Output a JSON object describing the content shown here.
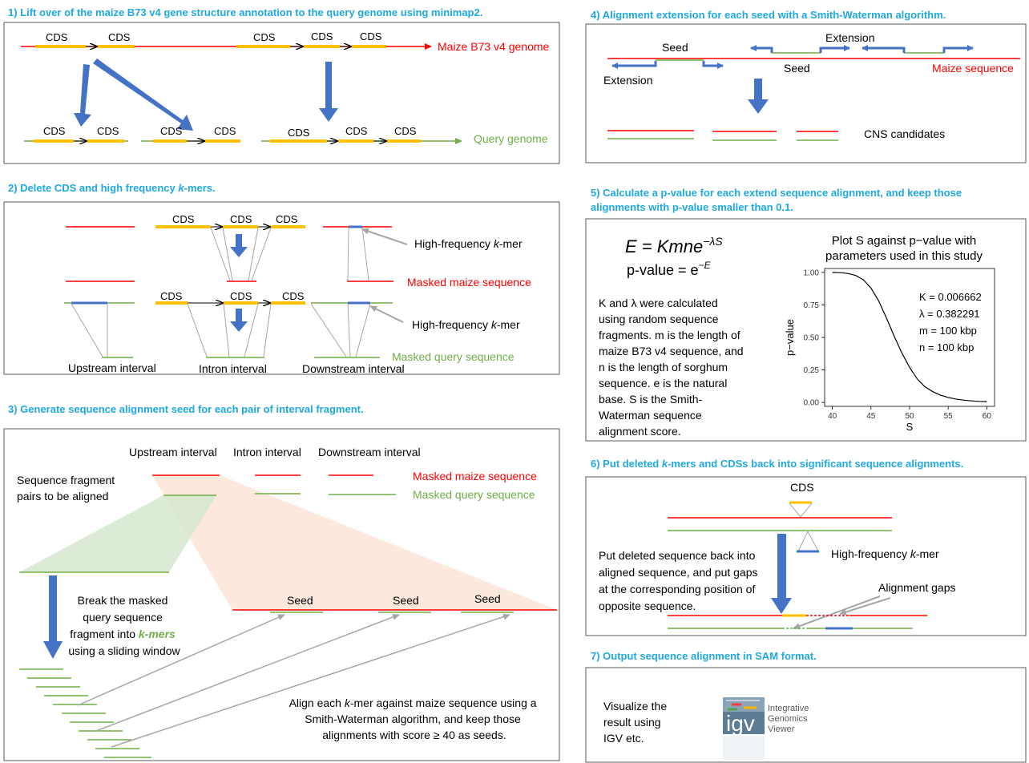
{
  "colors": {
    "heading": "#1fa9e1",
    "maize": "#ff0000",
    "query": "#70ad47",
    "cds": "#ffc000",
    "arrow": "#4472c4",
    "kmer": "#4472c4",
    "box_border": "#595959",
    "connector": "#a6a6a6",
    "wedge_green": "#d5e8cf",
    "wedge_orange": "#fbe2d5"
  },
  "p1": {
    "title": "1) Lift over of the maize B73 v4 gene structure annotation to the query genome using minimap2.",
    "cds": "CDS",
    "maize_label": "Maize B73 v4 genome",
    "query_label": "Query genome"
  },
  "p2": {
    "title_pre": "2) Delete CDS and high frequency ",
    "title_k": "k",
    "title_post": "-mers.",
    "cds": "CDS",
    "hf_pre": "High-frequency ",
    "hf_k": "k",
    "hf_post": "-mer",
    "masked_maize": "Masked maize sequence",
    "masked_query": "Masked query sequence",
    "upstream": "Upstream interval",
    "intron": "Intron interval",
    "downstream": "Downstream interval"
  },
  "p3": {
    "title": "3) Generate sequence alignment seed for each pair of interval fragment.",
    "upstream": "Upstream interval",
    "intron": "Intron interval",
    "downstream": "Downstream interval",
    "masked_maize": "Masked maize sequence",
    "masked_query": "Masked query sequence",
    "fragment_line1": "Sequence fragment",
    "fragment_line2": "pairs to be aligned",
    "seed": "Seed",
    "break_line1": "Break the masked",
    "break_line2": "query sequence",
    "break_line3_pre": "fragment into ",
    "break_line3_k": "k-mers",
    "break_line4": "using a sliding window",
    "align_line1_pre": "Align each ",
    "align_line1_k": "k",
    "align_line1_post": "-mer against maize sequence using a",
    "align_line2": "Smith-Waterman algorithm, and keep those",
    "align_line3": "alignments with score ≥ 40 as seeds."
  },
  "p4": {
    "title": "4) Alignment extension for each seed with a Smith-Waterman algorithm.",
    "seed": "Seed",
    "extension": "Extension",
    "maize_label": "Maize sequence",
    "cns": "CNS candidates"
  },
  "p5": {
    "title_line1": "5) Calculate a p-value for each extend sequence alignment, and keep those",
    "title_line2": "alignments with p-value smaller than 0.1.",
    "formula_E": "E = Kmne",
    "formula_E_exp": "−λS",
    "formula_p": "p-value = e",
    "formula_p_exp": "−E",
    "desc": [
      "K and λ were calculated",
      "using random sequence",
      "fragments. m is the length of",
      "maize B73 v4 sequence, and",
      "n is the length of sorghum",
      "sequence. e is the natural",
      "base. S is the Smith-",
      "Waterman sequence",
      "alignment score."
    ]
  },
  "chart_data": {
    "type": "line",
    "title": "Plot S against p−value with parameters used in this study",
    "title_line1": "Plot S against p−value with",
    "title_line2": "parameters used in this study",
    "xlabel": "S",
    "ylabel": "p−value",
    "xlim": [
      39,
      61
    ],
    "ylim": [
      -0.03,
      1.03
    ],
    "xticks": [
      40,
      45,
      50,
      55,
      60
    ],
    "yticks": [
      0.0,
      0.25,
      0.5,
      0.75,
      1.0
    ],
    "ytick_labels": [
      "0.00",
      "0.25",
      "0.50",
      "0.75",
      "1.00"
    ],
    "grid": false,
    "annotations": [
      "K = 0.006662",
      "λ = 0.382291",
      "m = 100 kbp",
      "n = 100 kbp"
    ],
    "series": [
      {
        "x": [
          40,
          41,
          42,
          43,
          44,
          45,
          46,
          47,
          48,
          49,
          50,
          51,
          52,
          53,
          54,
          55,
          56,
          57,
          58,
          59,
          60
        ],
        "y": [
          1.0,
          0.998,
          0.992,
          0.977,
          0.944,
          0.88,
          0.78,
          0.65,
          0.51,
          0.38,
          0.27,
          0.18,
          0.12,
          0.083,
          0.056,
          0.038,
          0.026,
          0.018,
          0.012,
          0.008,
          0.006
        ]
      }
    ]
  },
  "p6": {
    "title_pre": "6) Put deleted ",
    "title_k": "k",
    "title_post": "-mers and CDSs back into significant sequence alignments.",
    "cds": "CDS",
    "hf_pre": "High-frequency ",
    "hf_k": "k",
    "hf_post": "-mer",
    "desc": [
      "Put deleted sequence back into",
      "aligned sequence, and put gaps",
      "at the corresponding position of",
      "opposite sequence."
    ],
    "gaps": "Alignment gaps"
  },
  "p7": {
    "title": "7) Output sequence alignment in SAM format.",
    "desc": [
      "Visualize the",
      "result using",
      "IGV etc."
    ],
    "logo_text": "igv",
    "logo_line1": "Integrative",
    "logo_line2": "Genomics",
    "logo_line3": "Viewer"
  }
}
